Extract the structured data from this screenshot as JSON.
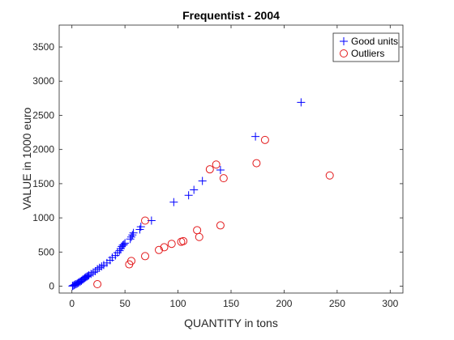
{
  "chart_data": {
    "type": "scatter",
    "title": "Frequentist - 2004",
    "xlabel": "QUANTITY in tons",
    "ylabel": "VALUE in 1000 euro",
    "xlim": [
      -12,
      312
    ],
    "ylim": [
      -100,
      3820
    ],
    "xticks": [
      0,
      50,
      100,
      150,
      200,
      250,
      300
    ],
    "yticks": [
      0,
      500,
      1000,
      1500,
      2000,
      2500,
      3000,
      3500
    ],
    "grid": false,
    "legend_position": "top-right",
    "series": [
      {
        "name": "Good units",
        "marker": "plus",
        "color": "#0000ff",
        "points": [
          [
            0.5,
            2
          ],
          [
            1,
            8
          ],
          [
            2,
            15
          ],
          [
            3,
            25
          ],
          [
            4,
            30
          ],
          [
            5,
            40
          ],
          [
            6,
            50
          ],
          [
            7,
            60
          ],
          [
            8,
            70
          ],
          [
            9,
            80
          ],
          [
            10,
            95
          ],
          [
            11,
            105
          ],
          [
            12,
            120
          ],
          [
            13,
            130
          ],
          [
            14,
            140
          ],
          [
            15,
            150
          ],
          [
            16,
            160
          ],
          [
            18,
            180
          ],
          [
            20,
            200
          ],
          [
            22,
            220
          ],
          [
            24,
            250
          ],
          [
            26,
            270
          ],
          [
            28,
            290
          ],
          [
            30,
            310
          ],
          [
            33,
            340
          ],
          [
            36,
            380
          ],
          [
            38,
            420
          ],
          [
            41,
            450
          ],
          [
            43,
            490
          ],
          [
            45,
            520
          ],
          [
            46,
            550
          ],
          [
            47,
            580
          ],
          [
            48,
            600
          ],
          [
            49,
            610
          ],
          [
            50,
            630
          ],
          [
            55,
            690
          ],
          [
            56,
            720
          ],
          [
            57,
            750
          ],
          [
            58,
            780
          ],
          [
            64,
            830
          ],
          [
            65,
            870
          ],
          [
            75,
            960
          ],
          [
            96,
            1230
          ],
          [
            110,
            1330
          ],
          [
            115,
            1410
          ],
          [
            123,
            1540
          ],
          [
            140,
            1700
          ],
          [
            173,
            2190
          ],
          [
            216,
            2690
          ]
        ]
      },
      {
        "name": "Outliers",
        "marker": "circle",
        "color": "#e31a1c",
        "points": [
          [
            24,
            30
          ],
          [
            54,
            320
          ],
          [
            56,
            370
          ],
          [
            69,
            440
          ],
          [
            69,
            960
          ],
          [
            82,
            530
          ],
          [
            87,
            570
          ],
          [
            94,
            620
          ],
          [
            103,
            650
          ],
          [
            105,
            660
          ],
          [
            118,
            820
          ],
          [
            120,
            720
          ],
          [
            130,
            1710
          ],
          [
            136,
            1780
          ],
          [
            140,
            890
          ],
          [
            143,
            1580
          ],
          [
            174,
            1800
          ],
          [
            182,
            2140
          ],
          [
            243,
            1620
          ]
        ]
      }
    ]
  }
}
